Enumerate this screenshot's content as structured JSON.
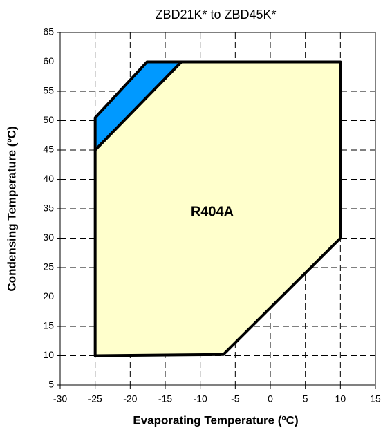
{
  "chart_data": {
    "type": "polygon",
    "title": "ZBD21K* to ZBD45K*",
    "x_label": "Evaporating Temperature (ºC)",
    "y_label": "Condensing Temperature (ºC)",
    "annotations": [
      "R404A"
    ],
    "xlim": [
      -30,
      15
    ],
    "xticks": [
      -30,
      -25,
      -20,
      -15,
      -10,
      -5,
      0,
      5,
      10,
      15
    ],
    "ylim": [
      5,
      65
    ],
    "yticks": [
      5,
      10,
      15,
      20,
      25,
      30,
      35,
      40,
      45,
      50,
      55,
      60,
      65
    ],
    "grid": true,
    "series": [
      {
        "color": "#ffffcc",
        "x": [
          -25,
          -6.7,
          10,
          10,
          -12.7,
          -25
        ],
        "y": [
          10,
          10.2,
          30,
          60,
          60,
          45
        ]
      },
      {
        "color": "#0099ff",
        "x": [
          -25,
          -25,
          -17.6,
          -12.7
        ],
        "y": [
          45,
          50.5,
          60,
          60
        ]
      }
    ]
  }
}
